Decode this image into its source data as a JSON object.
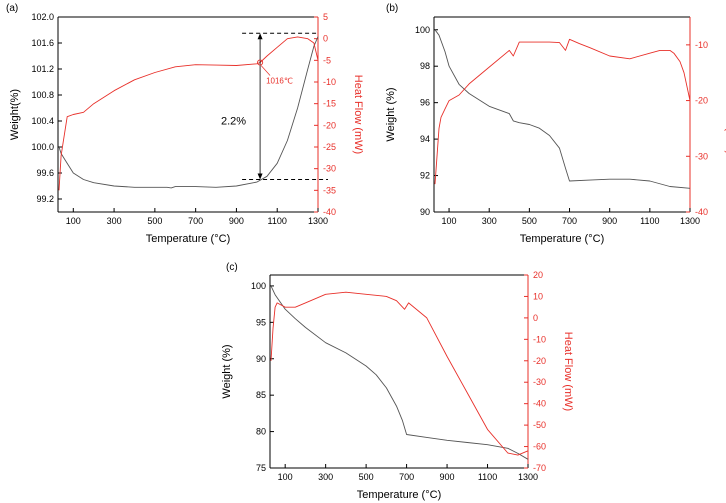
{
  "chart_data": [
    {
      "panel_label": "(a)",
      "type": "line",
      "xlabel": "Temperature (°C)",
      "ylabel_left": "Weight(%)",
      "ylabel_right": "Heat Flow (mW)",
      "xlim": [
        25,
        1300
      ],
      "xticks": [
        100,
        300,
        500,
        700,
        900,
        1100,
        1300
      ],
      "ylim_left": [
        99.0,
        102.0
      ],
      "yticks_left": [
        99.2,
        99.6,
        100.0,
        100.4,
        100.8,
        101.2,
        101.6,
        102.0
      ],
      "ytick_labels_left": [
        "99.2",
        "99.6",
        "100.0",
        "100.4",
        "100.8",
        "101.2",
        "101.6",
        "102.0"
      ],
      "ylim_right": [
        -40,
        5
      ],
      "yticks_right": [
        -40,
        -35,
        -30,
        -25,
        -20,
        -15,
        -10,
        -5,
        0,
        5
      ],
      "series": [
        {
          "name": "Weight",
          "axis": "left",
          "color": "#555555",
          "x": [
            30,
            40,
            60,
            80,
            100,
            150,
            200,
            300,
            400,
            500,
            560,
            580,
            600,
            700,
            800,
            900,
            1000,
            1050,
            1100,
            1150,
            1200,
            1250,
            1280,
            1300
          ],
          "y": [
            100.0,
            99.9,
            99.8,
            99.7,
            99.6,
            99.5,
            99.45,
            99.4,
            99.38,
            99.38,
            99.38,
            99.37,
            99.39,
            99.39,
            99.38,
            99.4,
            99.46,
            99.55,
            99.75,
            100.1,
            100.6,
            101.2,
            101.55,
            101.7
          ]
        },
        {
          "name": "Heat Flow",
          "axis": "right",
          "color": "#e8302a",
          "x": [
            30,
            40,
            50,
            70,
            100,
            150,
            200,
            300,
            400,
            500,
            600,
            700,
            800,
            900,
            1000,
            1016,
            1050,
            1100,
            1150,
            1200,
            1250,
            1280,
            1300
          ],
          "y": [
            -35,
            -27,
            -24,
            -18,
            -17.5,
            -17,
            -15,
            -12,
            -9.5,
            -7.8,
            -6.5,
            -6,
            -6.1,
            -6.2,
            -5.8,
            -5.5,
            -4,
            -2,
            0,
            0.4,
            0,
            -1,
            -5
          ]
        }
      ],
      "annotations": {
        "weight_change": "2.2%",
        "onset": "1016℃"
      }
    },
    {
      "panel_label": "(b)",
      "type": "line",
      "xlabel": "Temperature (°C)",
      "ylabel_left": "Weight (%)",
      "ylabel_right": "Heat Flow (mW)",
      "xlim": [
        25,
        1300
      ],
      "xticks": [
        100,
        300,
        500,
        700,
        900,
        1100,
        1300
      ],
      "ylim_left": [
        90,
        100.7
      ],
      "yticks_left": [
        90,
        92,
        94,
        96,
        98,
        100
      ],
      "ytick_labels_left": [
        "90",
        "92",
        "94",
        "96",
        "98",
        "100"
      ],
      "ylim_right": [
        -40,
        -5
      ],
      "yticks_right": [
        -40,
        -30,
        -20,
        -10
      ],
      "series": [
        {
          "name": "Weight",
          "axis": "left",
          "color": "#555555",
          "x": [
            30,
            50,
            80,
            100,
            150,
            200,
            300,
            400,
            420,
            450,
            500,
            550,
            600,
            650,
            680,
            700,
            800,
            900,
            1000,
            1100,
            1200,
            1300
          ],
          "y": [
            100,
            99.7,
            98.8,
            98.0,
            97.0,
            96.5,
            95.8,
            95.4,
            95.0,
            94.9,
            94.8,
            94.6,
            94.2,
            93.5,
            92.4,
            91.7,
            91.75,
            91.8,
            91.8,
            91.7,
            91.4,
            91.3
          ]
        },
        {
          "name": "Heat Flow",
          "axis": "right",
          "color": "#e8302a",
          "x": [
            30,
            40,
            50,
            60,
            80,
            100,
            150,
            200,
            300,
            400,
            420,
            450,
            500,
            600,
            650,
            680,
            700,
            750,
            800,
            900,
            1000,
            1100,
            1150,
            1200,
            1220,
            1250,
            1270,
            1300
          ],
          "y": [
            -35,
            -30,
            -25,
            -23,
            -21.5,
            -20,
            -19,
            -17,
            -14,
            -11,
            -12,
            -9.5,
            -9.5,
            -9.5,
            -9.6,
            -11,
            -9,
            -9.8,
            -10.5,
            -12,
            -12.5,
            -11.5,
            -11,
            -11,
            -11.5,
            -13,
            -15,
            -20
          ]
        }
      ]
    },
    {
      "panel_label": "(c)",
      "type": "line",
      "xlabel": "Temperature (°C)",
      "ylabel_left": "Weight (%)",
      "ylabel_right": "Heat Flow (mW)",
      "xlim": [
        25,
        1300
      ],
      "xticks": [
        100,
        300,
        500,
        700,
        900,
        1100,
        1300
      ],
      "ylim_left": [
        75,
        101.5
      ],
      "yticks_left": [
        75,
        80,
        85,
        90,
        95,
        100
      ],
      "ytick_labels_left": [
        "75",
        "80",
        "85",
        "90",
        "95",
        "100"
      ],
      "ylim_right": [
        -70,
        20
      ],
      "yticks_right": [
        -70,
        -60,
        -50,
        -40,
        -30,
        -20,
        -10,
        0,
        10,
        20
      ],
      "series": [
        {
          "name": "Weight",
          "axis": "left",
          "color": "#555555",
          "x": [
            30,
            50,
            100,
            150,
            200,
            300,
            400,
            500,
            550,
            600,
            650,
            680,
            700,
            800,
            900,
            1000,
            1100,
            1200,
            1250,
            1300
          ],
          "y": [
            100,
            98.8,
            96.8,
            95.5,
            94.3,
            92.2,
            90.8,
            89.0,
            87.8,
            86.0,
            83.5,
            81.5,
            79.6,
            79.2,
            78.8,
            78.5,
            78.2,
            77.7,
            77.0,
            76.2
          ]
        },
        {
          "name": "Heat Flow",
          "axis": "right",
          "color": "#e8302a",
          "x": [
            30,
            40,
            50,
            60,
            80,
            100,
            150,
            200,
            300,
            400,
            500,
            600,
            650,
            690,
            710,
            800,
            900,
            1000,
            1100,
            1200,
            1250,
            1300
          ],
          "y": [
            -20,
            -5,
            5,
            7,
            6,
            5,
            5,
            7,
            11,
            12,
            11,
            10,
            8,
            4,
            7,
            0,
            -18,
            -35,
            -52,
            -63,
            -64,
            -62
          ]
        }
      ]
    }
  ]
}
